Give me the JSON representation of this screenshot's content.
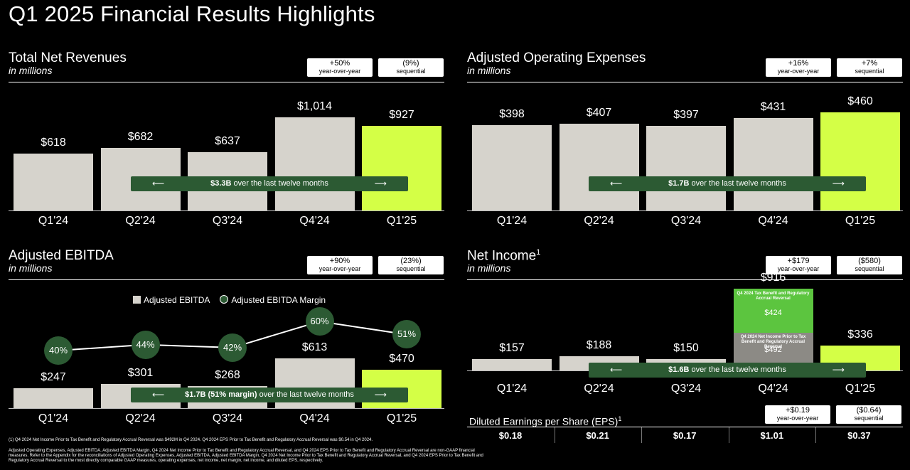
{
  "page": {
    "title": "Q1 2025 Financial Results Highlights"
  },
  "chart_data": [
    {
      "id": "revenues",
      "type": "bar",
      "title": "Total Net Revenues",
      "subtitle": "in millions",
      "categories": [
        "Q1'24",
        "Q2'24",
        "Q3'24",
        "Q4'24",
        "Q1'25"
      ],
      "values": [
        618,
        682,
        637,
        1014,
        927
      ],
      "value_labels": [
        "$618",
        "$682",
        "$637",
        "$1,014",
        "$927"
      ],
      "highlight_index": 4,
      "badges": [
        {
          "value": "+50%",
          "label": "year-over-year"
        },
        {
          "value": "(9%)",
          "label": "sequential"
        }
      ],
      "ttm": {
        "bold": "$3.3B",
        "rest": " over the last twelve months"
      }
    },
    {
      "id": "opex",
      "type": "bar",
      "title": "Adjusted Operating Expenses",
      "subtitle": "in millions",
      "categories": [
        "Q1'24",
        "Q2'24",
        "Q3'24",
        "Q4'24",
        "Q1'25"
      ],
      "values": [
        398,
        407,
        397,
        431,
        460
      ],
      "value_labels": [
        "$398",
        "$407",
        "$397",
        "$431",
        "$460"
      ],
      "highlight_index": 4,
      "badges": [
        {
          "value": "+16%",
          "label": "year-over-year"
        },
        {
          "value": "+7%",
          "label": "sequential"
        }
      ],
      "ttm": {
        "bold": "$1.7B",
        "rest": " over the last twelve months"
      }
    },
    {
      "id": "ebitda",
      "type": "bar",
      "title": "Adjusted EBITDA",
      "subtitle": "in millions",
      "categories": [
        "Q1'24",
        "Q2'24",
        "Q3'24",
        "Q4'24",
        "Q1'25"
      ],
      "values": [
        247,
        301,
        268,
        613,
        470
      ],
      "value_labels": [
        "$247",
        "$301",
        "$268",
        "$613",
        "$470"
      ],
      "margin_series": {
        "name": "Adjusted EBITDA Margin",
        "values": [
          40,
          44,
          42,
          60,
          51
        ],
        "labels": [
          "40%",
          "44%",
          "42%",
          "60%",
          "51%"
        ]
      },
      "legend": {
        "bars": "Adjusted EBITDA",
        "line": "Adjusted EBITDA Margin",
        "placement": "top-center"
      },
      "highlight_index": 4,
      "badges": [
        {
          "value": "+90%",
          "label": "year-over-year"
        },
        {
          "value": "(23%)",
          "label": "sequential"
        }
      ],
      "ttm": {
        "bold": "$1.7B (51% margin)",
        "rest": " over the last twelve months"
      }
    },
    {
      "id": "netincome",
      "type": "bar",
      "title": "Net Income",
      "title_sup": "1",
      "subtitle": "in millions",
      "categories": [
        "Q1'24",
        "Q2'24",
        "Q3'24",
        "Q4'24",
        "Q1'25"
      ],
      "values": [
        157,
        188,
        150,
        916,
        336
      ],
      "value_labels": [
        "$157",
        "$188",
        "$150",
        "$916",
        "$336"
      ],
      "q4_stack": {
        "top": {
          "label": "Q4 2024 Tax Benefit and Regulatory Accrual Reversal",
          "value": 424,
          "value_label": "$424",
          "color": "#5cc53f"
        },
        "bottom": {
          "label": "Q4 2024 Net Income Prior to Tax Benefit and Regulatory Accrual Reversal",
          "value": 492,
          "value_label": "$492",
          "color": "#8c8a85"
        }
      },
      "highlight_index": 4,
      "badges": [
        {
          "value": "+$179",
          "label": "year-over-year"
        },
        {
          "value": "($580)",
          "label": "sequential"
        }
      ],
      "ttm": {
        "bold": "$1.6B",
        "rest": " over the last twelve months"
      }
    }
  ],
  "eps": {
    "title": "Diluted Earnings per Share (EPS)",
    "title_sup": "1",
    "values": [
      "$0.18",
      "$0.21",
      "$0.17",
      "$1.01",
      "$0.37"
    ],
    "badges": [
      {
        "value": "+$0.19",
        "label": "year-over-year"
      },
      {
        "value": "($0.64)",
        "label": "sequential"
      }
    ]
  },
  "footnotes": [
    "(1) Q4 2024 Net Income Prior to Tax Benefit and Regulatory Accrual Reversal was $492M in Q4 2024. Q4 2024 EPS Prior to Tax Benefit and Regulatory Accrual Reversal was $0.54 in Q4 2024.",
    "Adjusted Operating Expenses, Adjusted EBITDA, Adjusted EBITDA Margin, Q4 2024 Net Income Prior to Tax Benefit and Regulatory Accrual Reversal, and Q4 2024 EPS Prior to Tax Benefit and Regulatory Accrual Reversal are non-GAAP financial measures. Refer to the Appendix for the reconciliations of Adjusted Operating Expenses, Adjusted EBITDA, Adjusted EBITDA Margin, Q4 2024 Net Income Prior to Tax Benefit and Regulatory Accrual Reversal, and Q4 2024 EPS Prior to Tax Benefit and Regulatory Accrual Reversal to the most directly comparable GAAP measures, operating expenses, net income, net margin, net income, and diluted EPS, respectively."
  ],
  "colors": {
    "bar": "#d6d3cc",
    "highlight": "#d4ff46",
    "ttm": "#2c5a33"
  }
}
